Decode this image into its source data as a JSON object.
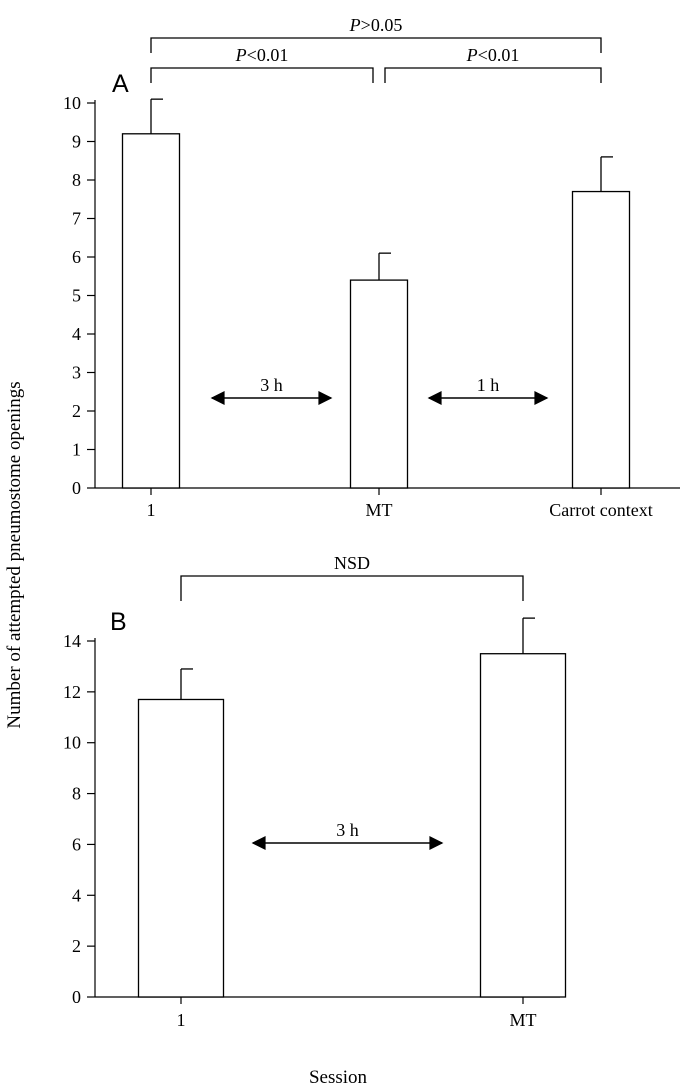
{
  "figure": {
    "y_axis_label": "Number of attempted pneumostome openings",
    "x_axis_label": "Session",
    "colors": {
      "ink": "#000000",
      "bar_fill": "#ffffff",
      "background": "#ffffff"
    }
  },
  "chart_data": [
    {
      "panel": "A",
      "type": "bar",
      "categories": [
        "1",
        "MT",
        "Carrot context"
      ],
      "values": [
        9.2,
        5.4,
        7.7
      ],
      "error_upper": [
        10.1,
        6.1,
        8.6
      ],
      "ylim": [
        0,
        10
      ],
      "yticks": [
        0,
        1,
        2,
        3,
        4,
        5,
        6,
        7,
        8,
        9,
        10
      ],
      "interval_arrows": [
        {
          "label": "3 h",
          "between": [
            "1",
            "MT"
          ]
        },
        {
          "label": "1 h",
          "between": [
            "MT",
            "Carrot context"
          ]
        }
      ],
      "significance": [
        {
          "prefix": "P",
          "text": "<0.01",
          "between": [
            "1",
            "MT"
          ],
          "level": 1
        },
        {
          "prefix": "P",
          "text": "<0.01",
          "between": [
            "MT",
            "Carrot context"
          ],
          "level": 1
        },
        {
          "prefix": "P",
          "text": ">0.05",
          "between": [
            "1",
            "Carrot context"
          ],
          "level": 2
        }
      ]
    },
    {
      "panel": "B",
      "type": "bar",
      "categories": [
        "1",
        "MT"
      ],
      "values": [
        11.7,
        13.5
      ],
      "error_upper": [
        12.9,
        14.9
      ],
      "ylim": [
        0,
        14
      ],
      "yticks": [
        0,
        2,
        4,
        6,
        8,
        10,
        12,
        14
      ],
      "interval_arrows": [
        {
          "label": "3 h",
          "between": [
            "1",
            "MT"
          ]
        }
      ],
      "significance": [
        {
          "prefix": "",
          "text": "NSD",
          "between": [
            "1",
            "MT"
          ],
          "level": 1
        }
      ]
    }
  ]
}
